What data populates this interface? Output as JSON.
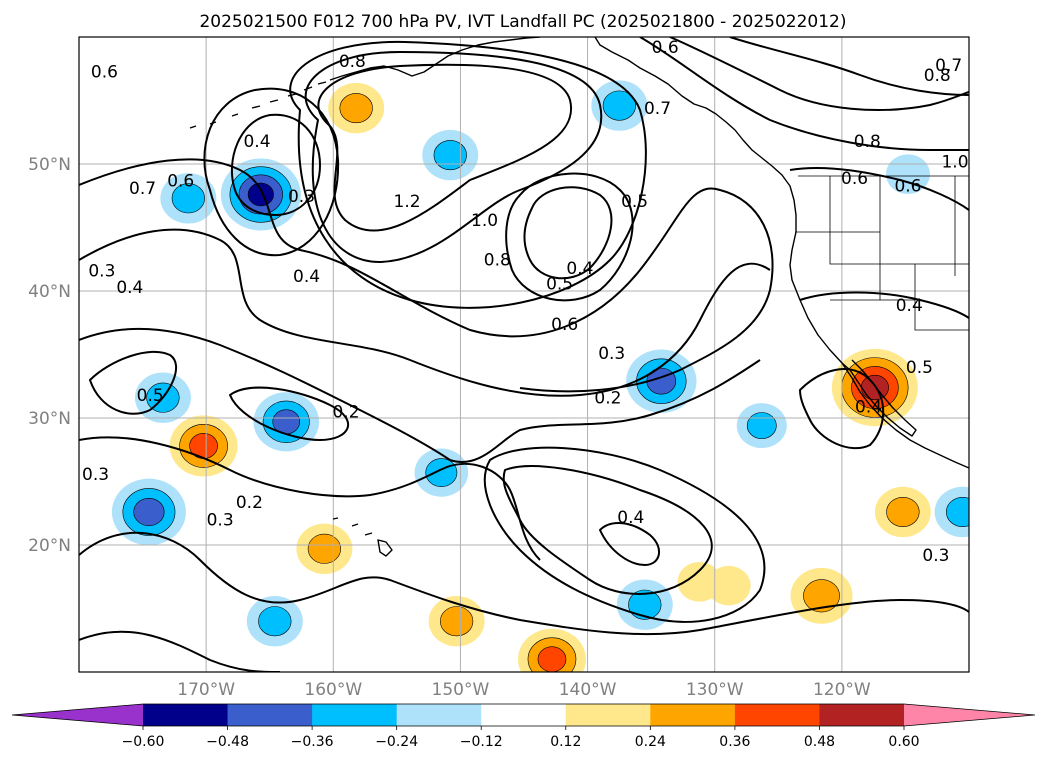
{
  "title": "2025021500 F012 700 hPa PV, IVT Landfall PC (2025021800 - 2025022012)",
  "map": {
    "lon_range": [
      -180,
      -110
    ],
    "lat_range": [
      10,
      60
    ],
    "lon_ticks": [
      {
        "lon": -170,
        "label": "170°W"
      },
      {
        "lon": -160,
        "label": "160°W"
      },
      {
        "lon": -150,
        "label": "150°W"
      },
      {
        "lon": -140,
        "label": "140°W"
      },
      {
        "lon": -130,
        "label": "130°W"
      },
      {
        "lon": -120,
        "label": "120°W"
      }
    ],
    "lat_ticks": [
      {
        "lat": 50,
        "label": "50°N"
      },
      {
        "lat": 40,
        "label": "40°N"
      },
      {
        "lat": 30,
        "label": "30°N"
      },
      {
        "lat": 20,
        "label": "20°N"
      }
    ],
    "grid": true
  },
  "colorbar": {
    "orientation": "horizontal",
    "extend": "both",
    "under_color": "#9932cc",
    "over_color": "#ff85a8",
    "bins": [
      {
        "from": -0.6,
        "to": -0.48,
        "color": "#00008b"
      },
      {
        "from": -0.48,
        "to": -0.36,
        "color": "#3a5fcd"
      },
      {
        "from": -0.36,
        "to": -0.24,
        "color": "#00bfff"
      },
      {
        "from": -0.24,
        "to": -0.12,
        "color": "#aee1fa"
      },
      {
        "from": -0.12,
        "to": 0.12,
        "color": "#ffffff"
      },
      {
        "from": 0.12,
        "to": 0.24,
        "color": "#ffe88c"
      },
      {
        "from": 0.24,
        "to": 0.36,
        "color": "#ffa500"
      },
      {
        "from": 0.36,
        "to": 0.48,
        "color": "#ff4500"
      },
      {
        "from": 0.48,
        "to": 0.6,
        "color": "#b22222"
      }
    ],
    "tick_labels": [
      "−0.60",
      "−0.48",
      "−0.36",
      "−0.24",
      "−0.12",
      "0.12",
      "0.24",
      "0.36",
      "0.48",
      "0.60"
    ]
  },
  "contour_labels": [
    {
      "text": "0.6",
      "lon": -178,
      "lat": 57.3
    },
    {
      "text": "0.8",
      "lon": -158.5,
      "lat": 58.1
    },
    {
      "text": "0.4",
      "lon": -166,
      "lat": 51.8
    },
    {
      "text": "0.3",
      "lon": -162.5,
      "lat": 47.5
    },
    {
      "text": "0.6",
      "lon": -172,
      "lat": 48.7
    },
    {
      "text": "0.7",
      "lon": -175,
      "lat": 48.1
    },
    {
      "text": "0.3",
      "lon": -178.2,
      "lat": 41.6
    },
    {
      "text": "0.4",
      "lon": -176,
      "lat": 40.3
    },
    {
      "text": "0.4",
      "lon": -162.1,
      "lat": 41.2
    },
    {
      "text": "1.2",
      "lon": -154.2,
      "lat": 47.1
    },
    {
      "text": "1.0",
      "lon": -148.1,
      "lat": 45.6
    },
    {
      "text": "0.8",
      "lon": -147.1,
      "lat": 42.5
    },
    {
      "text": "0.4",
      "lon": -140.6,
      "lat": 41.8
    },
    {
      "text": "0.5",
      "lon": -142.2,
      "lat": 40.6
    },
    {
      "text": "0.6",
      "lon": -141.8,
      "lat": 37.4
    },
    {
      "text": "0.5",
      "lon": -136.3,
      "lat": 47.1
    },
    {
      "text": "0.7",
      "lon": -134.5,
      "lat": 54.4
    },
    {
      "text": "0.6",
      "lon": -133.9,
      "lat": 59.2
    },
    {
      "text": "0.7",
      "lon": -111.6,
      "lat": 57.8
    },
    {
      "text": "0.8",
      "lon": -112.5,
      "lat": 57.0
    },
    {
      "text": "0.8",
      "lon": -118,
      "lat": 51.8
    },
    {
      "text": "0.6",
      "lon": -119,
      "lat": 48.9
    },
    {
      "text": "0.6",
      "lon": -114.8,
      "lat": 48.3
    },
    {
      "text": "1.0",
      "lon": -111.1,
      "lat": 50.2
    },
    {
      "text": "0.3",
      "lon": -138.1,
      "lat": 35.1
    },
    {
      "text": "0.2",
      "lon": -138.4,
      "lat": 31.6
    },
    {
      "text": "0.2",
      "lon": -159,
      "lat": 30.5
    },
    {
      "text": "0.5",
      "lon": -174.4,
      "lat": 31.8
    },
    {
      "text": "0.3",
      "lon": -178.7,
      "lat": 25.6
    },
    {
      "text": "0.2",
      "lon": -166.6,
      "lat": 23.4
    },
    {
      "text": "0.3",
      "lon": -168.9,
      "lat": 22.0
    },
    {
      "text": "0.4",
      "lon": -136.6,
      "lat": 22.2
    },
    {
      "text": "0.4",
      "lon": -114.7,
      "lat": 38.9
    },
    {
      "text": "0.5",
      "lon": -113.9,
      "lat": 34.0
    },
    {
      "text": "0.4",
      "lon": -117.9,
      "lat": 30.9
    },
    {
      "text": "0.3",
      "lon": -112.6,
      "lat": 19.2
    }
  ],
  "shaded_regions": [
    {
      "lon": -165.7,
      "lat": 47.6,
      "value": -0.5
    },
    {
      "lon": -173.4,
      "lat": 31.6,
      "value": -0.3
    },
    {
      "lon": -171.4,
      "lat": 47.3,
      "value": -0.3
    },
    {
      "lon": -150.8,
      "lat": 50.7,
      "value": -0.3
    },
    {
      "lon": -137.5,
      "lat": 54.6,
      "value": -0.3
    },
    {
      "lon": -163.7,
      "lat": 29.7,
      "value": -0.38
    },
    {
      "lon": -134.2,
      "lat": 32.9,
      "value": -0.42
    },
    {
      "lon": -174.5,
      "lat": 22.6,
      "value": -0.45
    },
    {
      "lon": -151.5,
      "lat": 25.7,
      "value": -0.28
    },
    {
      "lon": -126.3,
      "lat": 29.4,
      "value": -0.25
    },
    {
      "lon": -135.5,
      "lat": 15.3,
      "value": -0.3
    },
    {
      "lon": -164.6,
      "lat": 14.0,
      "value": -0.3
    },
    {
      "lon": -110.5,
      "lat": 22.6,
      "value": -0.3
    },
    {
      "lon": -114.8,
      "lat": 49.2,
      "value": -0.2
    },
    {
      "lon": -170.2,
      "lat": 27.8,
      "value": 0.4
    },
    {
      "lon": -158.2,
      "lat": 54.4,
      "value": 0.3
    },
    {
      "lon": -117.4,
      "lat": 32.4,
      "value": 0.55
    },
    {
      "lon": -115.2,
      "lat": 22.6,
      "value": 0.3
    },
    {
      "lon": -121.6,
      "lat": 16.0,
      "value": 0.35
    },
    {
      "lon": -150.3,
      "lat": 14.0,
      "value": 0.3
    },
    {
      "lon": -160.7,
      "lat": 19.7,
      "value": 0.3
    },
    {
      "lon": -142.8,
      "lat": 11.0,
      "value": 0.4
    },
    {
      "lon": -131.2,
      "lat": 17.1,
      "value": 0.2
    },
    {
      "lon": -128.9,
      "lat": 16.8,
      "value": 0.2
    }
  ]
}
